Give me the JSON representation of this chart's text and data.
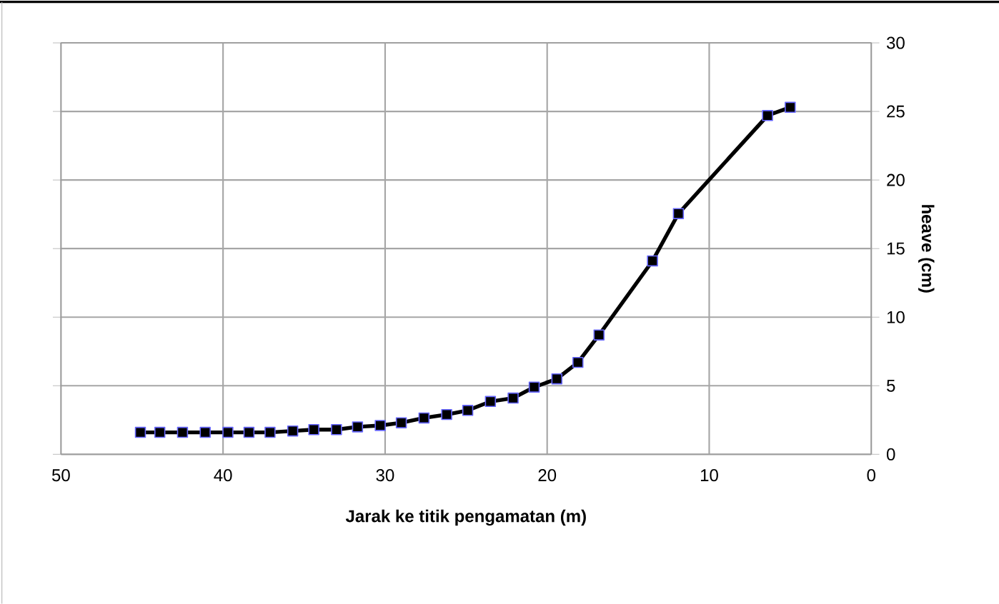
{
  "chart_data": {
    "type": "line",
    "xlabel": "Jarak ke titik pengamatan (m)",
    "ylabel": "heave (cm)",
    "xlim": [
      50,
      0
    ],
    "xticks": [
      50,
      40,
      30,
      20,
      10,
      0
    ],
    "ylim": [
      0,
      30
    ],
    "yticks": [
      0,
      5,
      10,
      15,
      20,
      25,
      30
    ],
    "grid": true,
    "marker": "square",
    "line_style": "solid",
    "series": [
      {
        "color": "#000000",
        "x": [
          45.1,
          43.9,
          42.5,
          41.1,
          39.7,
          38.4,
          37.1,
          35.7,
          34.4,
          33.0,
          31.7,
          30.3,
          29.0,
          27.6,
          26.2,
          24.9,
          23.5,
          22.1,
          20.8,
          19.4,
          18.1,
          16.8,
          13.5,
          11.9,
          6.4,
          5.0
        ],
        "values": [
          1.6,
          1.6,
          1.6,
          1.6,
          1.6,
          1.6,
          1.6,
          1.7,
          1.8,
          1.8,
          2.0,
          2.1,
          2.3,
          2.65,
          2.9,
          3.2,
          3.85,
          4.1,
          4.9,
          5.5,
          6.7,
          8.7,
          14.1,
          17.55,
          24.7,
          25.3
        ]
      }
    ]
  }
}
